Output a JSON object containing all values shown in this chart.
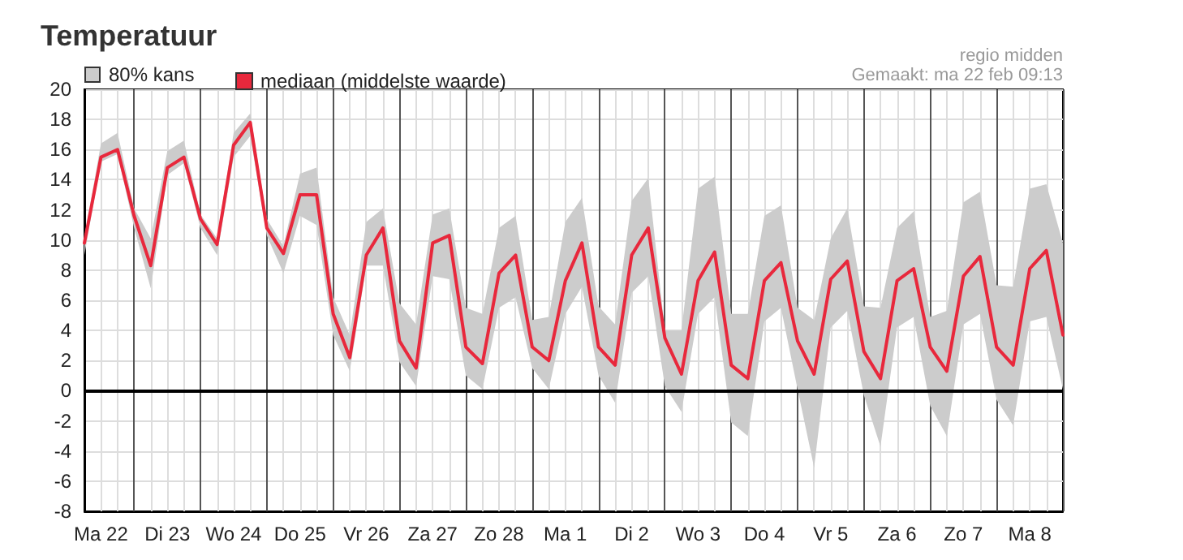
{
  "chart_data": {
    "type": "line",
    "title": "Temperatuur",
    "annotations": [
      "80% kans",
      "regio midden",
      "Gemaakt: ma 22 feb 09:13"
    ],
    "categories": [
      null,
      "Ma 22",
      null,
      null,
      null,
      "Di 23",
      null,
      null,
      null,
      "Wo 24",
      null,
      null,
      null,
      "Do 25",
      null,
      null,
      null,
      "Vr 26",
      null,
      null,
      null,
      "Za 27",
      null,
      null,
      null,
      "Zo 28",
      null,
      null,
      null,
      "Ma 1",
      null,
      null,
      null,
      "Di 2",
      null,
      null,
      null,
      "Wo 3",
      null,
      null,
      null,
      "Do 4",
      null,
      null,
      null,
      "Vr 5",
      null,
      null,
      null,
      "Za 6",
      null,
      null,
      null,
      "Zo 7",
      null,
      null,
      null,
      "Ma 8",
      null,
      null
    ],
    "series": [
      {
        "name": "mediaan (middelste waarde)",
        "color": "#e8283c",
        "values": [
          9.8,
          15.5,
          16.0,
          11.6,
          8.3,
          14.8,
          15.5,
          11.4,
          9.7,
          16.3,
          17.8,
          10.8,
          9.1,
          13.0,
          13.0,
          5.1,
          2.2,
          9.0,
          10.8,
          3.3,
          1.5,
          9.8,
          10.3,
          2.9,
          1.8,
          7.8,
          9.0,
          2.9,
          2.0,
          7.3,
          9.8,
          2.9,
          1.7,
          9.0,
          10.8,
          3.5,
          1.1,
          7.3,
          9.2,
          1.7,
          0.8,
          7.3,
          8.5,
          3.3,
          1.1,
          7.4,
          8.6,
          2.6,
          0.8,
          7.3,
          8.1,
          2.9,
          1.3,
          7.6,
          8.9,
          2.9,
          1.7,
          8.1,
          9.3,
          3.7
        ],
        "lower": [
          9.0,
          15.2,
          15.7,
          10.8,
          6.8,
          14.3,
          15.1,
          10.8,
          9.0,
          15.5,
          16.9,
          10.3,
          7.8,
          11.6,
          11.0,
          3.7,
          1.3,
          8.3,
          8.3,
          1.9,
          0.3,
          7.6,
          7.4,
          1.0,
          0.1,
          5.5,
          6.2,
          1.5,
          0.1,
          5.1,
          6.9,
          1.0,
          -0.8,
          6.5,
          7.6,
          0.3,
          -1.4,
          5.1,
          6.2,
          -2.1,
          -3.0,
          4.6,
          5.5,
          0.1,
          -5.1,
          4.2,
          5.3,
          -0.3,
          -3.7,
          4.2,
          4.9,
          -1.0,
          -3.0,
          4.4,
          5.1,
          -0.6,
          -2.3,
          4.6,
          4.9,
          0.1
        ],
        "upper": [
          10.2,
          16.4,
          17.1,
          12.1,
          10.1,
          15.9,
          16.6,
          11.7,
          10.1,
          17.1,
          18.4,
          11.4,
          9.6,
          14.4,
          14.8,
          6.2,
          3.7,
          11.2,
          12.1,
          5.8,
          4.4,
          11.7,
          12.1,
          5.5,
          5.1,
          10.8,
          11.6,
          4.7,
          4.9,
          11.2,
          12.8,
          5.6,
          4.4,
          12.6,
          14.1,
          4.0,
          4.0,
          13.4,
          14.2,
          5.1,
          5.1,
          11.6,
          12.3,
          5.5,
          4.7,
          10.1,
          12.1,
          5.6,
          5.5,
          10.8,
          11.9,
          4.9,
          5.3,
          12.5,
          13.2,
          7.0,
          6.9,
          13.4,
          13.7,
          9.8
        ]
      }
    ],
    "ylim": [
      -8,
      20
    ],
    "yticks": [
      -8,
      -6,
      -4,
      -2,
      0,
      2,
      4,
      6,
      8,
      10,
      12,
      14,
      16,
      18,
      20
    ],
    "grid": true,
    "legend": "top left",
    "marker": "none",
    "ref_lines": [
      {
        "axis": "y",
        "value": 0,
        "color": "#000000"
      }
    ]
  }
}
